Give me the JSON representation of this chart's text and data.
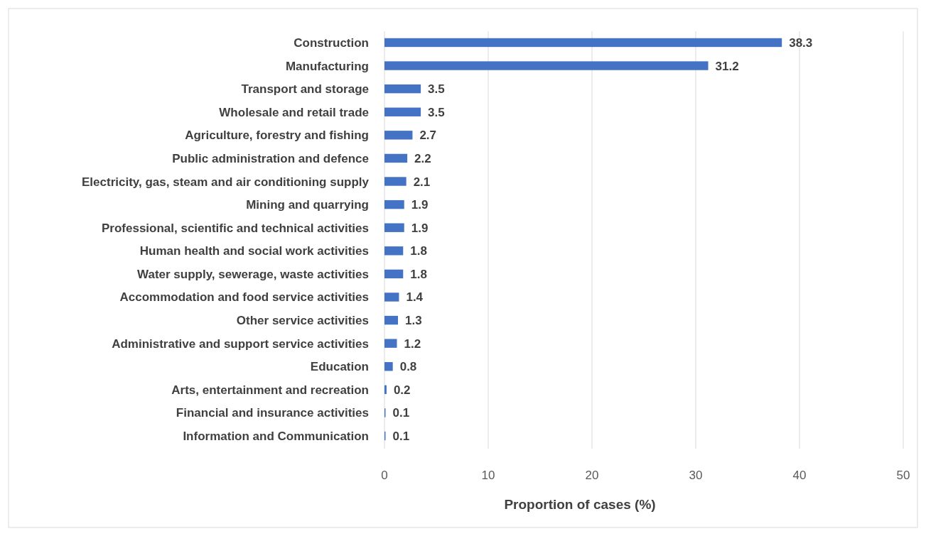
{
  "chart_data": {
    "type": "bar",
    "orientation": "horizontal",
    "xlabel": "Proportion of cases (%)",
    "categories": [
      "Construction",
      "Manufacturing",
      "Transport and storage",
      "Wholesale and retail trade",
      "Agriculture, forestry and fishing",
      "Public administration and defence",
      "Electricity, gas, steam and air conditioning supply",
      "Mining and quarrying",
      "Professional, scientific and technical activities",
      "Human health and social work activities",
      "Water supply, sewerage, waste activities",
      "Accommodation and food service activities",
      "Other service activities",
      "Administrative and support service activities",
      "Education",
      "Arts, entertainment and recreation",
      "Financial and insurance activities",
      "Information and Communication"
    ],
    "values": [
      38.3,
      31.2,
      3.5,
      3.5,
      2.7,
      2.2,
      2.1,
      1.9,
      1.9,
      1.8,
      1.8,
      1.4,
      1.3,
      1.2,
      0.8,
      0.2,
      0.1,
      0.1
    ],
    "color": "#4472c4",
    "xlim": [
      0,
      50
    ],
    "xticks": [
      0,
      10,
      20,
      30,
      40,
      50
    ],
    "grid": "x",
    "data_labels": true
  }
}
